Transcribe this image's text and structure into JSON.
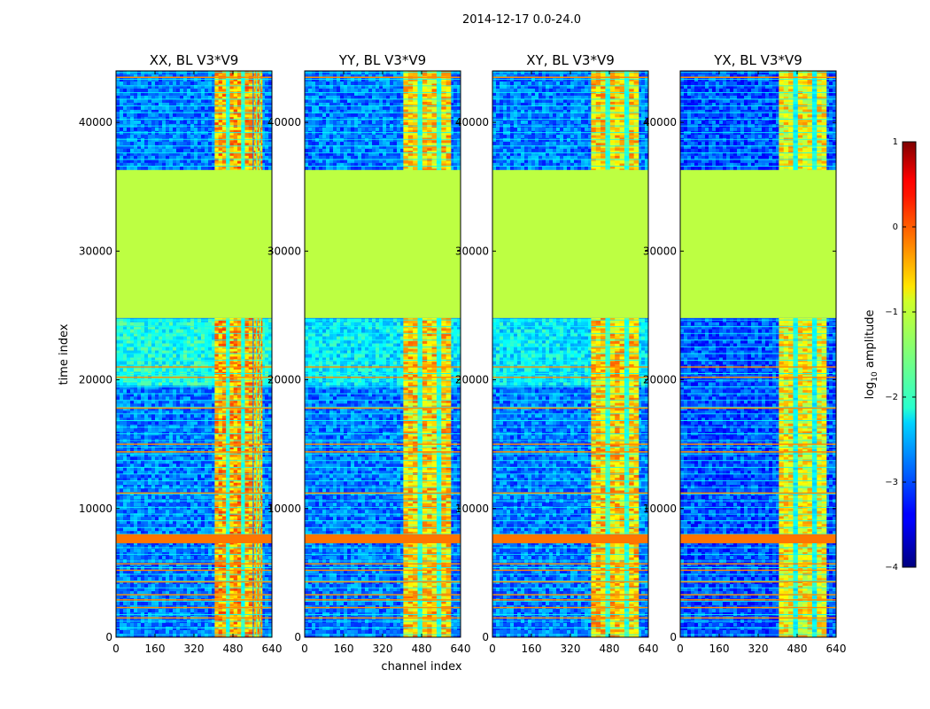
{
  "figure": {
    "suptitle": "2014-12-17 0.0-24.0",
    "xlabel": "channel index",
    "ylabel": "time index"
  },
  "colorbar": {
    "label_prefix": "log",
    "label_sub": "10",
    "label_suffix": " amplitude",
    "ticks": [
      "1",
      "0",
      "−1",
      "−2",
      "−3",
      "−4"
    ],
    "range": [
      -4,
      1
    ],
    "colormap": "jet"
  },
  "chart_data": {
    "type": "heatmap",
    "x_range": [
      0,
      640
    ],
    "y_range": [
      0,
      44000
    ],
    "x_ticks": [
      "0",
      "160",
      "320",
      "480",
      "640"
    ],
    "y_ticks": [
      "0",
      "10000",
      "20000",
      "30000",
      "40000"
    ],
    "x_tick_values": [
      0,
      160,
      320,
      480,
      640
    ],
    "y_tick_values": [
      0,
      10000,
      20000,
      30000,
      40000
    ],
    "flagged_time_range": [
      24800,
      36300
    ],
    "flagged_log_amplitude": -1.2,
    "panels": [
      {
        "title": "XX, BL V3*V9",
        "background_level": -2.8,
        "upper_block_level": -2.0,
        "band_channels": [
          [
            405,
            560
          ],
          [
            565,
            600
          ]
        ],
        "band_level": -0.5
      },
      {
        "title": "YY, BL V3*V9",
        "background_level": -2.8,
        "upper_block_level": -2.2,
        "band_channels": [
          [
            405,
            600
          ]
        ],
        "band_level": -0.7
      },
      {
        "title": "XY, BL V3*V9",
        "background_level": -2.8,
        "upper_block_level": -2.2,
        "band_channels": [
          [
            405,
            600
          ]
        ],
        "band_level": -0.7
      },
      {
        "title": "YX, BL V3*V9",
        "background_level": -3.0,
        "upper_block_level": -3.0,
        "band_channels": [
          [
            405,
            600
          ]
        ],
        "band_level": -0.9
      }
    ]
  }
}
